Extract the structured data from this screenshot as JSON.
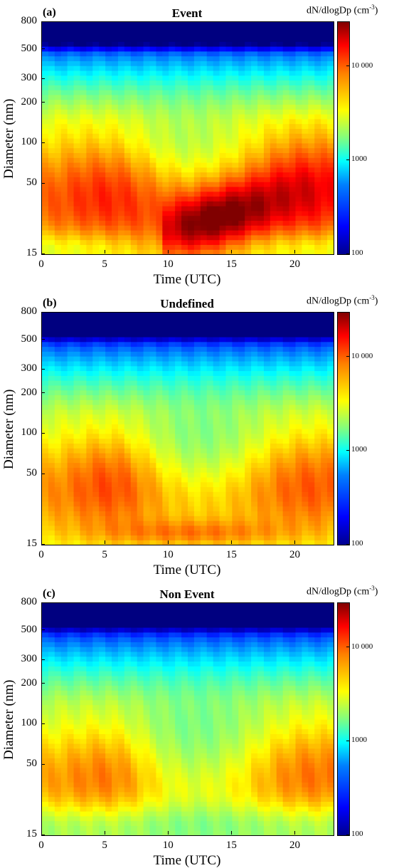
{
  "chart_data": [
    {
      "type": "heatmap",
      "panel_label": "(a)",
      "title": "Event",
      "xlabel": "Time (UTC)",
      "ylabel": "Diameter (nm)",
      "xlim": [
        0,
        23
      ],
      "ylim": [
        15,
        800
      ],
      "yscale": "log",
      "x_ticks": [
        "0",
        "5",
        "10",
        "15",
        "20"
      ],
      "y_ticks": [
        "15",
        "50",
        "100",
        "200",
        "300",
        "500",
        "800"
      ],
      "colorbar": {
        "label": "dN/dlogDp (cm",
        "label_sup": "-3",
        "label_tail": ")",
        "scale": "log",
        "range": [
          100,
          30000
        ],
        "ticks": [
          "100",
          "1000",
          "10 000"
        ]
      },
      "colormap": "jet"
    },
    {
      "type": "heatmap",
      "panel_label": "(b)",
      "title": "Undefined",
      "xlabel": "Time (UTC)",
      "ylabel": "Diameter (nm)",
      "xlim": [
        0,
        23
      ],
      "ylim": [
        15,
        800
      ],
      "yscale": "log",
      "x_ticks": [
        "0",
        "5",
        "10",
        "15",
        "20"
      ],
      "y_ticks": [
        "15",
        "50",
        "100",
        "200",
        "300",
        "500",
        "800"
      ],
      "colorbar": {
        "label": "dN/dlogDp (cm",
        "label_sup": "-3",
        "label_tail": ")",
        "scale": "log",
        "range": [
          100,
          30000
        ],
        "ticks": [
          "100",
          "1000",
          "10 000"
        ]
      },
      "colormap": "jet"
    },
    {
      "type": "heatmap",
      "panel_label": "(c)",
      "title": "Non Event",
      "xlabel": "Time (UTC)",
      "ylabel": "Diameter (nm)",
      "xlim": [
        0,
        23
      ],
      "ylim": [
        15,
        800
      ],
      "yscale": "log",
      "x_ticks": [
        "0",
        "5",
        "10",
        "15",
        "20"
      ],
      "y_ticks": [
        "15",
        "50",
        "100",
        "200",
        "300",
        "500",
        "800"
      ],
      "colorbar": {
        "label": "dN/dlogDp (cm",
        "label_sup": "-3",
        "label_tail": ")",
        "scale": "log",
        "range": [
          100,
          30000
        ],
        "ticks": [
          "100",
          "1000",
          "10 000"
        ]
      },
      "colormap": "jet"
    }
  ]
}
